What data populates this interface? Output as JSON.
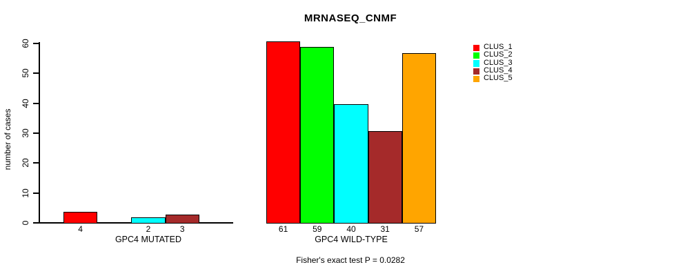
{
  "chart_data": {
    "type": "bar",
    "title": "MRNASEQ_CNMF",
    "ylabel": "number of cases",
    "ylim": [
      0,
      60
    ],
    "yticks": [
      0,
      10,
      20,
      30,
      40,
      50,
      60
    ],
    "grid": false,
    "legend_position": "top-right",
    "categories": [
      "GPC4 MUTATED",
      "GPC4 WILD-TYPE"
    ],
    "series": [
      {
        "name": "CLUS_1",
        "color": "#ff0000",
        "values": [
          4,
          61
        ]
      },
      {
        "name": "CLUS_2",
        "color": "#00ff00",
        "values": [
          0,
          59
        ]
      },
      {
        "name": "CLUS_3",
        "color": "#00ffff",
        "values": [
          2,
          40
        ]
      },
      {
        "name": "CLUS_4",
        "color": "#a52a2a",
        "values": [
          3,
          31
        ]
      },
      {
        "name": "CLUS_5",
        "color": "#ffa500",
        "values": [
          0,
          57
        ]
      }
    ],
    "show_value_labels_under_bars": true,
    "value_labels_hidden_for_zero": true,
    "annotation": "Fisher's exact test P = 0.0282",
    "colors": {
      "axis": "#000000",
      "bar_border": "#000000",
      "text": "#000000",
      "background": "#ffffff"
    }
  }
}
